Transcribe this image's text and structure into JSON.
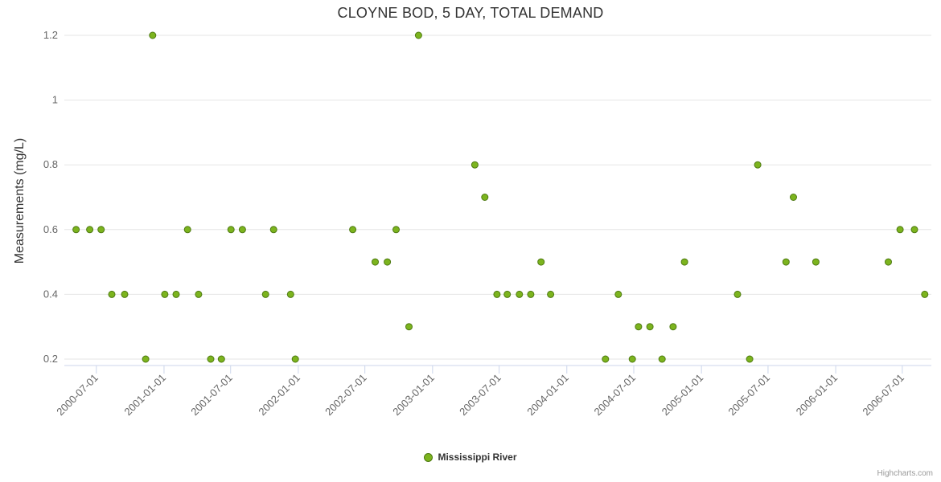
{
  "page": {
    "credits": "Highcharts.com"
  },
  "chart_data": {
    "type": "scatter",
    "title": "CLOYNE BOD, 5 DAY, TOTAL DEMAND",
    "xlabel": "",
    "ylabel": "Measurements (mg/L)",
    "legend_position": "bottom-center",
    "grid": "horizontal",
    "marker_color": "#7cb41e",
    "marker_border_color": "#4e7a12",
    "ylim": [
      0.2,
      1.2
    ],
    "y_ticks": [
      0.2,
      0.4,
      0.6,
      0.8,
      1,
      1.2
    ],
    "y_tick_labels": [
      "0.2",
      "0.4",
      "0.6",
      "0.8",
      "1",
      "1.2"
    ],
    "xlim": [
      "2000-04-05",
      "2006-09-18"
    ],
    "x_ticks": [
      "2000-07-01",
      "2001-01-01",
      "2001-07-01",
      "2002-01-01",
      "2002-07-01",
      "2003-01-01",
      "2003-07-01",
      "2004-01-01",
      "2004-07-01",
      "2005-01-01",
      "2005-07-01",
      "2006-01-01",
      "2006-07-01"
    ],
    "series": [
      {
        "name": "Mississippi River",
        "points": [
          [
            "2000-05-07",
            0.6
          ],
          [
            "2000-06-13",
            0.6
          ],
          [
            "2000-07-14",
            0.6
          ],
          [
            "2000-08-12",
            0.4
          ],
          [
            "2000-09-16",
            0.4
          ],
          [
            "2000-11-12",
            0.2
          ],
          [
            "2000-12-01",
            1.2
          ],
          [
            "2001-01-03",
            0.4
          ],
          [
            "2001-02-03",
            0.4
          ],
          [
            "2001-03-06",
            0.6
          ],
          [
            "2001-04-05",
            0.4
          ],
          [
            "2001-05-08",
            0.2
          ],
          [
            "2001-06-06",
            0.2
          ],
          [
            "2001-07-02",
            0.6
          ],
          [
            "2001-08-02",
            0.6
          ],
          [
            "2001-10-04",
            0.4
          ],
          [
            "2001-10-26",
            0.6
          ],
          [
            "2001-12-11",
            0.4
          ],
          [
            "2001-12-24",
            0.2
          ],
          [
            "2002-05-29",
            0.6
          ],
          [
            "2002-07-29",
            0.5
          ],
          [
            "2002-08-31",
            0.5
          ],
          [
            "2002-09-24",
            0.6
          ],
          [
            "2002-10-29",
            0.3
          ],
          [
            "2002-11-24",
            1.2
          ],
          [
            "2003-04-26",
            0.8
          ],
          [
            "2003-05-23",
            0.7
          ],
          [
            "2003-06-25",
            0.4
          ],
          [
            "2003-07-23",
            0.4
          ],
          [
            "2003-08-25",
            0.4
          ],
          [
            "2003-09-25",
            0.4
          ],
          [
            "2003-10-23",
            0.5
          ],
          [
            "2003-11-18",
            0.4
          ],
          [
            "2004-04-15",
            0.2
          ],
          [
            "2004-05-20",
            0.4
          ],
          [
            "2004-06-27",
            0.2
          ],
          [
            "2004-07-14",
            0.3
          ],
          [
            "2004-08-14",
            0.3
          ],
          [
            "2004-09-16",
            0.2
          ],
          [
            "2004-10-16",
            0.3
          ],
          [
            "2004-11-16",
            0.5
          ],
          [
            "2005-04-09",
            0.4
          ],
          [
            "2005-05-12",
            0.2
          ],
          [
            "2005-06-03",
            0.8
          ],
          [
            "2005-08-19",
            0.5
          ],
          [
            "2005-09-08",
            0.7
          ],
          [
            "2005-11-08",
            0.5
          ],
          [
            "2006-05-24",
            0.5
          ],
          [
            "2006-06-25",
            0.6
          ],
          [
            "2006-08-03",
            0.6
          ],
          [
            "2006-08-31",
            0.4
          ]
        ]
      }
    ]
  }
}
